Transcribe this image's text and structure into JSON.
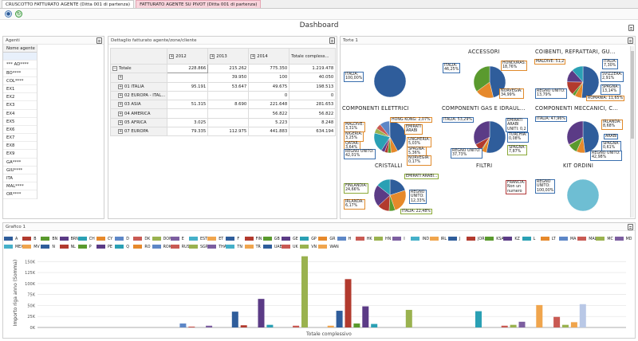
{
  "tabs": [
    {
      "label": "CRUSCOTTO FATTURATO AGENTE (Ditta 001 di partenza)",
      "active": true
    },
    {
      "label": "FATTURATO AGENTE SU PIVOT (Ditta 001 di partenza)",
      "active": false
    }
  ],
  "dashboard_title": "Dashboard",
  "agents_panel": {
    "title": "Agenti",
    "header": "Nome agente",
    "items": [
      "",
      "*** AD****",
      "BO****",
      "COL****",
      "EX1",
      "EX2",
      "EX3",
      "EX4",
      "EX5",
      "EX6",
      "EX7",
      "EX8",
      "EX9",
      "GA****",
      "GIU****",
      "ITA",
      "MAL****",
      "OR****"
    ]
  },
  "pivot": {
    "title": "Dettaglio fatturato agente/zone/cliente",
    "years": [
      "2012",
      "2013",
      "2014"
    ],
    "total_col": "Totale compless...",
    "rows": [
      {
        "label": "Totale",
        "v": [
          "228.866",
          "215.262",
          "775.350",
          "1.219.478"
        ]
      },
      {
        "label": "",
        "v": [
          "",
          "39.950",
          "100",
          "40.050"
        ]
      },
      {
        "label": "01 ITALIA",
        "v": [
          "95.191",
          "53.647",
          "49.675",
          "198.513"
        ]
      },
      {
        "label": "02 EUROPA - ITAL...",
        "v": [
          "",
          "",
          "0",
          "0"
        ]
      },
      {
        "label": "03 ASIA",
        "v": [
          "51.315",
          "8.690",
          "221.648",
          "281.653"
        ]
      },
      {
        "label": "04 AMERICA",
        "v": [
          "",
          "",
          "56.822",
          "56.822"
        ]
      },
      {
        "label": "05 AFRICA",
        "v": [
          "3.025",
          "",
          "5.223",
          "8.248"
        ]
      },
      {
        "label": "07 EUROPA",
        "v": [
          "79.335",
          "112.975",
          "441.883",
          "634.194"
        ]
      }
    ]
  },
  "pies": {
    "title": "Torte 1",
    "items": [
      {
        "title": "",
        "labels": [
          {
            "t": "ITALIA:\n100,00%",
            "c": "blue"
          }
        ]
      },
      {
        "title": "ACCESSORI",
        "labels": [
          {
            "t": "ITALIA:\n46,25%",
            "c": "blue"
          },
          {
            "t": "HONDURAS:\n18,76%",
            "c": "orange"
          },
          {
            "t": "NORVEGIA:\n34,99%",
            "c": "orange"
          }
        ]
      },
      {
        "title": "COIBENTI, REFRATTARI, GU...",
        "labels": [
          {
            "t": "MALDIVE: 51,2",
            "c": "orange"
          },
          {
            "t": "ITALIA:\n7,30%",
            "c": "blue"
          },
          {
            "t": "SVIZZERA:\n2,91%",
            "c": "blue"
          },
          {
            "t": "REGNO UNITO:\n13,79%",
            "c": "blue"
          },
          {
            "t": "SPAGNA:\n13,14%",
            "c": "blue"
          },
          {
            "t": "ROMANIA: 11,65%",
            "c": "orange"
          }
        ]
      },
      {
        "title": "COMPONENTI ELETTRICI",
        "labels": [
          {
            "t": "HONG KONG: 2,07%",
            "c": "orange"
          },
          {
            "t": "MALDIVE:\n3,31%",
            "c": "orange"
          },
          {
            "t": "NIGERIA:\n3,25%",
            "c": "orange"
          },
          {
            "t": "QATAR:\n3,64%",
            "c": "orange"
          },
          {
            "t": "REGNO UNITO:\n42,01%",
            "c": "blue"
          },
          {
            "t": "EMIRATI\nARABI",
            "c": "orange"
          },
          {
            "t": "UNGHERIA:\n5,03%",
            "c": "orange"
          },
          {
            "t": "SPAGNA:\n5,36%",
            "c": "orange"
          },
          {
            "t": "NORVEGIA:\n0,17%",
            "c": "orange"
          }
        ]
      },
      {
        "title": "COMPONENTI GAS E IDRAUL...",
        "labels": [
          {
            "t": "ITALIA: 53,29%",
            "c": "blue"
          },
          {
            "t": "EMIRATI\nARABI\nUNITI: 0,2",
            "c": "blue"
          },
          {
            "t": "TURCHIA:\n0,08%",
            "c": "blue"
          },
          {
            "t": "SPAGNA:\n7,87%",
            "c": "green"
          },
          {
            "t": "REGNO UNITO:\n37,73%",
            "c": "blue"
          }
        ]
      },
      {
        "title": "COMPONENTI MECCANICI, C...",
        "labels": [
          {
            "t": "ITALIA: 47,96%",
            "c": "blue"
          },
          {
            "t": "IRLANDA:\n8,68%",
            "c": "orange"
          },
          {
            "t": "ARABI",
            "c": "blue"
          },
          {
            "t": "SPAGNA:\n0,61%",
            "c": "blue"
          },
          {
            "t": "REGNO UNITO:\n42,98%",
            "c": "blue"
          }
        ]
      },
      {
        "title": "CRISTALLI",
        "labels": [
          {
            "t": "EMIRATI ARABI...",
            "c": "green"
          },
          {
            "t": "FINLANDIA:\n24,66%",
            "c": "green"
          },
          {
            "t": "IRLANDA:\n6,17%",
            "c": "orange"
          },
          {
            "t": "REGNO\nUNITO:\n12,33%",
            "c": "blue"
          },
          {
            "t": "ITALIA: 22,48%",
            "c": "green"
          }
        ]
      },
      {
        "title": "FILTRI",
        "labels": []
      },
      {
        "title": "KIT ORDINI",
        "labels": [
          {
            "t": "FRANCIA:\nNon un\nnumero",
            "c": "red"
          },
          {
            "t": "REGNO\nUNITO:\n100,00%",
            "c": "blue"
          }
        ]
      }
    ]
  },
  "chart_panel_title": "Grafico 1",
  "chart_data": {
    "type": "bar",
    "categories": [
      "Totale complessivo"
    ],
    "xlabel": "Totale complessivo",
    "ylabel": "Importo riga anno (Somma)",
    "yticks": [
      "0K",
      "25K",
      "50K",
      "75K",
      "100K",
      "125K",
      "150K"
    ],
    "ylim": [
      0,
      165000
    ],
    "grid": true,
    "legend_position": "top",
    "series": [
      {
        "name": "A",
        "color": "#2f5d9b",
        "value": 0
      },
      {
        "name": "B",
        "color": "#b23a2e",
        "value": 0
      },
      {
        "name": "BN",
        "color": "#5a9a2e",
        "value": 0
      },
      {
        "name": "BRN",
        "color": "#5b3b86",
        "value": 0
      },
      {
        "name": "CH",
        "color": "#2aa0b4",
        "value": 0
      },
      {
        "name": "CY",
        "color": "#e6892b",
        "value": 0
      },
      {
        "name": "D",
        "color": "#5d87c7",
        "value": 9000
      },
      {
        "name": "DK",
        "color": "#c95a53",
        "value": 2000
      },
      {
        "name": "DOM",
        "color": "#9ab24f",
        "value": 0
      },
      {
        "name": "E",
        "color": "#7c5ea0",
        "value": 4000
      },
      {
        "name": "EST",
        "color": "#45b0c9",
        "value": 0
      },
      {
        "name": "ET",
        "color": "#f0a54d",
        "value": 0
      },
      {
        "name": "F",
        "color": "#2f5d9b",
        "value": 36000
      },
      {
        "name": "FIN",
        "color": "#b23a2e",
        "value": 5000
      },
      {
        "name": "GB",
        "color": "#5a9a2e",
        "value": 0
      },
      {
        "name": "GE",
        "color": "#5b3b86",
        "value": 65000
      },
      {
        "name": "GP",
        "color": "#2aa0b4",
        "value": 6000
      },
      {
        "name": "GR",
        "color": "#e6892b",
        "value": 0
      },
      {
        "name": "H",
        "color": "#5d87c7",
        "value": 0
      },
      {
        "name": "HK",
        "color": "#c95a53",
        "value": 4000
      },
      {
        "name": "HN",
        "color": "#9ab24f",
        "value": 162000
      },
      {
        "name": "I",
        "color": "#7c5ea0",
        "value": 0
      },
      {
        "name": "IND",
        "color": "#45b0c9",
        "value": 0
      },
      {
        "name": "IRL",
        "color": "#f0a54d",
        "value": 4000
      },
      {
        "name": "J",
        "color": "#2f5d9b",
        "value": 38000
      },
      {
        "name": "JOR",
        "color": "#b23a2e",
        "value": 110000
      },
      {
        "name": "KSA",
        "color": "#5a9a2e",
        "value": 9000
      },
      {
        "name": "KZ",
        "color": "#5b3b86",
        "value": 48000
      },
      {
        "name": "L",
        "color": "#2aa0b4",
        "value": 8000
      },
      {
        "name": "LT",
        "color": "#e6892b",
        "value": 0
      },
      {
        "name": "MA",
        "color": "#5d87c7",
        "value": 0
      },
      {
        "name": "MAL",
        "color": "#c95a53",
        "value": 0
      },
      {
        "name": "MC",
        "color": "#9ab24f",
        "value": 40000
      },
      {
        "name": "MD",
        "color": "#7c5ea0",
        "value": 0
      },
      {
        "name": "MEX",
        "color": "#45b0c9",
        "value": 0
      },
      {
        "name": "MV",
        "color": "#f0a54d",
        "value": 0
      },
      {
        "name": "N",
        "color": "#2f5d9b",
        "value": 0
      },
      {
        "name": "NL",
        "color": "#b23a2e",
        "value": 0
      },
      {
        "name": "P",
        "color": "#5a9a2e",
        "value": 0
      },
      {
        "name": "PE",
        "color": "#5b3b86",
        "value": 0
      },
      {
        "name": "Q",
        "color": "#2aa0b4",
        "value": 37000
      },
      {
        "name": "RO",
        "color": "#e6892b",
        "value": 0
      },
      {
        "name": "ROK",
        "color": "#5d87c7",
        "value": 0
      },
      {
        "name": "RUS",
        "color": "#c95a53",
        "value": 4000
      },
      {
        "name": "SGP",
        "color": "#9ab24f",
        "value": 6000
      },
      {
        "name": "THA",
        "color": "#7c5ea0",
        "value": 13000
      },
      {
        "name": "TN",
        "color": "#45b0c9",
        "value": 0
      },
      {
        "name": "TR",
        "color": "#f0a54d",
        "value": 51000
      },
      {
        "name": "UAE",
        "color": "#2f5d9b",
        "value": 0
      },
      {
        "name": "UK",
        "color": "#c95a53",
        "value": 24000
      },
      {
        "name": "VN",
        "color": "#9ab24f",
        "value": 6000
      },
      {
        "name": "WAN",
        "color": "#f0a54d",
        "value": 12000
      }
    ]
  },
  "chart_extra": {
    "last_bar_color": "#b9c8e6",
    "last_bar_value": 53000
  }
}
